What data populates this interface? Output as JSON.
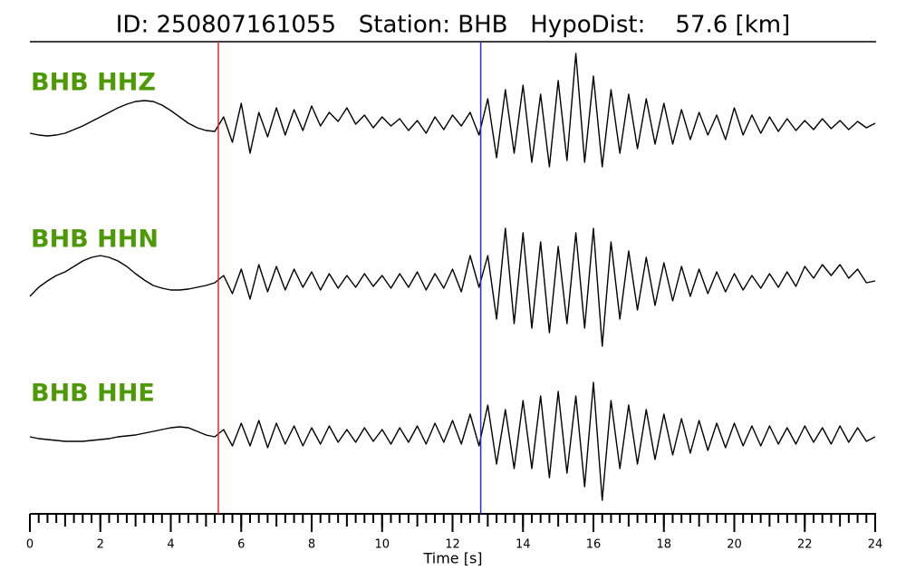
{
  "chart_data": {
    "type": "seismogram",
    "title": "ID: 250807161055   Station: BHB   HypoDist:    57.6 [km]",
    "x_label": "Time [s]",
    "xlim": [
      0,
      24
    ],
    "xticks": [
      0,
      2,
      4,
      6,
      8,
      10,
      12,
      14,
      16,
      18,
      20,
      22,
      24
    ],
    "label_color": "#4e9a06",
    "trace_color": "#000000",
    "markers": [
      {
        "x": 5.35,
        "color": "#e8262a"
      },
      {
        "x": 12.8,
        "color": "#2b2bd0"
      }
    ],
    "x": [
      0,
      0.25,
      0.5,
      0.75,
      1,
      1.25,
      1.5,
      1.75,
      2,
      2.25,
      2.5,
      2.75,
      3,
      3.25,
      3.5,
      3.75,
      4,
      4.25,
      4.5,
      4.75,
      5,
      5.25,
      5.5,
      5.75,
      6,
      6.25,
      6.5,
      6.75,
      7,
      7.25,
      7.5,
      7.75,
      8,
      8.25,
      8.5,
      8.75,
      9,
      9.25,
      9.5,
      9.75,
      10,
      10.25,
      10.5,
      10.75,
      11,
      11.25,
      11.5,
      11.75,
      12,
      12.25,
      12.5,
      12.75,
      13,
      13.25,
      13.5,
      13.75,
      14,
      14.25,
      14.5,
      14.75,
      15,
      15.25,
      15.5,
      15.75,
      16,
      16.25,
      16.5,
      16.75,
      17,
      17.25,
      17.5,
      17.75,
      18,
      18.25,
      18.5,
      18.75,
      19,
      19.25,
      19.5,
      19.75,
      20,
      20.25,
      20.5,
      20.75,
      21,
      21.25,
      21.5,
      21.75,
      22,
      22.25,
      22.5,
      22.75,
      23,
      23.25,
      23.5,
      23.75,
      24
    ],
    "series": [
      {
        "name": "BHB HHZ",
        "values": [
          -8,
          -10,
          -11,
          -10,
          -8,
          -4,
          0,
          5,
          10,
          15,
          20,
          24,
          27,
          28,
          27,
          23,
          17,
          10,
          3,
          -2,
          -5,
          -6,
          10,
          -18,
          25,
          -30,
          15,
          -12,
          20,
          -10,
          18,
          -5,
          22,
          0,
          15,
          5,
          20,
          2,
          12,
          -2,
          10,
          0,
          8,
          -5,
          6,
          -8,
          10,
          -4,
          12,
          0,
          15,
          -10,
          30,
          -35,
          40,
          -30,
          45,
          -40,
          35,
          -45,
          50,
          -38,
          80,
          -40,
          55,
          -45,
          40,
          -30,
          35,
          -25,
          30,
          -20,
          25,
          -20,
          18,
          -15,
          15,
          -10,
          12,
          -15,
          20,
          -10,
          12,
          -8,
          10,
          -6,
          8,
          -5,
          6,
          -4,
          8,
          -3,
          6,
          -4,
          5,
          -2,
          3
        ]
      },
      {
        "name": "BHB HHN",
        "values": [
          -15,
          -5,
          2,
          8,
          12,
          18,
          24,
          28,
          30,
          28,
          24,
          18,
          10,
          3,
          -3,
          -6,
          -8,
          -8,
          -7,
          -5,
          -3,
          0,
          8,
          -12,
          15,
          -18,
          20,
          -10,
          18,
          -8,
          15,
          -5,
          12,
          -8,
          10,
          -6,
          8,
          -5,
          10,
          -4,
          8,
          -6,
          10,
          -5,
          12,
          -8,
          10,
          -6,
          15,
          -10,
          30,
          -5,
          30,
          -40,
          60,
          -45,
          55,
          -50,
          45,
          -55,
          40,
          -45,
          55,
          -50,
          60,
          -70,
          45,
          -40,
          35,
          -30,
          28,
          -25,
          22,
          -20,
          18,
          -15,
          15,
          -12,
          12,
          -10,
          10,
          -8,
          8,
          -6,
          10,
          -5,
          12,
          -4,
          18,
          5,
          20,
          8,
          20,
          5,
          15,
          0,
          2
        ]
      },
      {
        "name": "BHB HHE",
        "values": [
          0,
          -2,
          -3,
          -4,
          -5,
          -5,
          -5,
          -4,
          -3,
          -2,
          0,
          1,
          2,
          4,
          6,
          8,
          10,
          11,
          10,
          6,
          2,
          0,
          8,
          -10,
          15,
          -10,
          18,
          -12,
          15,
          -8,
          12,
          -10,
          10,
          -8,
          12,
          -6,
          8,
          -6,
          10,
          -5,
          8,
          -8,
          10,
          -6,
          12,
          -8,
          15,
          -6,
          18,
          -8,
          25,
          -10,
          35,
          -30,
          30,
          -35,
          40,
          -35,
          45,
          -45,
          50,
          -40,
          45,
          -55,
          60,
          -70,
          40,
          -35,
          35,
          -30,
          30,
          -25,
          25,
          -20,
          20,
          -18,
          18,
          -15,
          15,
          -12,
          15,
          -10,
          12,
          -10,
          12,
          -8,
          10,
          -8,
          12,
          -6,
          10,
          -8,
          12,
          -6,
          10,
          -5,
          0
        ]
      }
    ]
  }
}
